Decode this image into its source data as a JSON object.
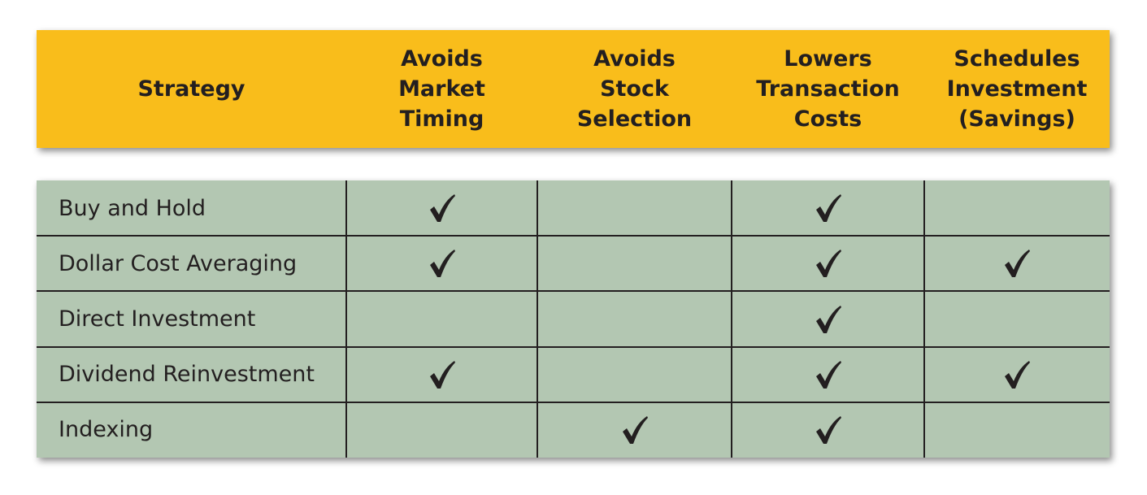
{
  "table": {
    "header": [
      [
        "Strategy"
      ],
      [
        "Avoids",
        "Market",
        "Timing"
      ],
      [
        "Avoids",
        "Stock",
        "Selection"
      ],
      [
        "Lowers",
        "Transaction",
        "Costs"
      ],
      [
        "Schedules",
        "Investment",
        "(Savings)"
      ]
    ],
    "rows": [
      {
        "strategy": "Buy and Hold",
        "checks": [
          true,
          false,
          true,
          false
        ]
      },
      {
        "strategy": "Dollar Cost Averaging",
        "checks": [
          true,
          false,
          true,
          true
        ]
      },
      {
        "strategy": "Direct Investment",
        "checks": [
          false,
          false,
          true,
          false
        ]
      },
      {
        "strategy": "Dividend Reinvestment",
        "checks": [
          true,
          false,
          true,
          true
        ]
      },
      {
        "strategy": "Indexing",
        "checks": [
          false,
          true,
          true,
          false
        ]
      }
    ]
  }
}
